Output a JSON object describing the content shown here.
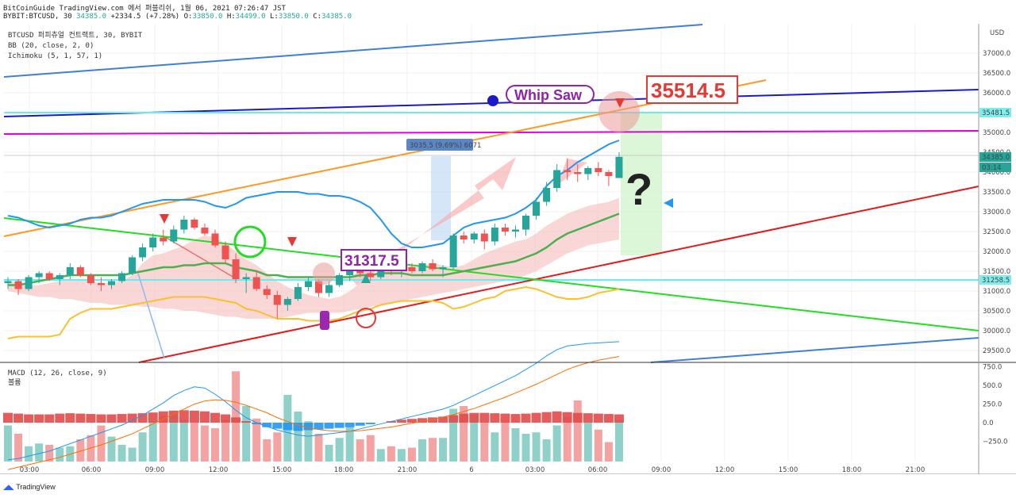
{
  "header": {
    "line1": "BitCoinGuide TradingView.com 에서 퍼블리쉬, 1월 06, 2021 07:26:47 JST",
    "symbol": "BYBIT:BTCUSD, 30",
    "change": "+2334.5 (+7.28%)",
    "open_label": "O:",
    "open": "33850.0",
    "high_label": "H:",
    "high": "34499.0",
    "low_label": "L:",
    "low": "33850.0",
    "close_label": "C:",
    "close": "34385.0"
  },
  "indicators": {
    "main": "BTCUSD 퍼피츄얼 컨트랙트, 30, BYBIT",
    "bb": "BB (20, close, 2, 0)",
    "ichimoku": "Ichimoku (5, 1, 57, 1)",
    "macd": "MACD (12, 26, close, 9)",
    "volume": "볼륨"
  },
  "currency": "USD",
  "footer": "TradingView",
  "colors": {
    "up": "#26a69a",
    "down": "#ef5350",
    "bb": "#2196f3",
    "kijun": "#4caf50",
    "spanb": "#fbc02d",
    "cloud": "#f4b6b6",
    "trend_blue": "#3f7fd8",
    "trend_navy": "#1a1ac8",
    "trend_orange": "#ff9822",
    "trend_red": "#e51b1b",
    "trend_green": "#22dd22",
    "h_cyan": "#66eeee",
    "h_magenta": "#dd00dd"
  },
  "chart_data": {
    "type": "candlestick",
    "y_range": [
      29250,
      37500
    ],
    "price_ticks": [
      29500,
      30000,
      30500,
      31000,
      31500,
      32000,
      32500,
      33000,
      33500,
      34000,
      34500,
      35000,
      35500,
      36000,
      36500,
      37000
    ],
    "price_tick_labels": [
      "29500.0",
      "30000.0",
      "30500.0",
      "31000.0",
      "31500.0",
      "32000.0",
      "32500.0",
      "33000.0",
      "33500.0",
      "34000.0",
      "34500.0",
      "35000.0",
      "35500.0",
      "36000.0",
      "36500.0",
      "37000.0"
    ],
    "time_labels": [
      "03:00",
      "06:00",
      "09:00",
      "12:00",
      "15:00",
      "18:00",
      "21:00",
      "6",
      "03:00",
      "06:00",
      "09:00",
      "12:00",
      "15:00",
      "18:00",
      "21:00"
    ],
    "macd_ticks": [
      750,
      500,
      250,
      0,
      -250
    ],
    "macd_tick_labels": [
      "750.0",
      "500.0",
      "250.0",
      "0.0",
      "−250.0"
    ],
    "candles": [
      [
        31200,
        31350,
        31050,
        31250
      ],
      [
        31250,
        31300,
        30900,
        31050
      ],
      [
        31050,
        31400,
        31000,
        31350
      ],
      [
        31350,
        31500,
        31200,
        31450
      ],
      [
        31450,
        31500,
        31250,
        31300
      ],
      [
        31300,
        31450,
        31150,
        31400
      ],
      [
        31400,
        31700,
        31300,
        31600
      ],
      [
        31600,
        31650,
        31350,
        31400
      ],
      [
        31400,
        31450,
        31150,
        31200
      ],
      [
        31200,
        31350,
        31000,
        31150
      ],
      [
        31150,
        31300,
        31050,
        31250
      ],
      [
        31250,
        31500,
        31200,
        31450
      ],
      [
        31450,
        31900,
        31400,
        31850
      ],
      [
        31850,
        32200,
        31750,
        32100
      ],
      [
        32100,
        32450,
        32000,
        32350
      ],
      [
        32350,
        32550,
        32150,
        32250
      ],
      [
        32250,
        32650,
        32200,
        32550
      ],
      [
        32550,
        32900,
        32450,
        32800
      ],
      [
        32800,
        32850,
        32550,
        32600
      ],
      [
        32600,
        32700,
        32400,
        32450
      ],
      [
        32450,
        32550,
        32100,
        32150
      ],
      [
        32150,
        32250,
        31700,
        31800
      ],
      [
        31800,
        31950,
        31200,
        31300
      ],
      [
        31300,
        31450,
        30950,
        31350
      ],
      [
        31350,
        31500,
        31000,
        31050
      ],
      [
        31050,
        31150,
        30800,
        30900
      ],
      [
        30900,
        31000,
        30300,
        30650
      ],
      [
        30650,
        30850,
        30500,
        30800
      ],
      [
        30800,
        31200,
        30750,
        31100
      ],
      [
        31100,
        31350,
        31000,
        31250
      ],
      [
        31250,
        31300,
        30850,
        30950
      ],
      [
        30950,
        31250,
        30850,
        31150
      ],
      [
        31150,
        31450,
        31100,
        31400
      ],
      [
        31400,
        31600,
        31250,
        31550
      ],
      [
        31550,
        31650,
        31350,
        31450
      ],
      [
        31450,
        31550,
        31250,
        31350
      ],
      [
        31350,
        31700,
        31300,
        31650
      ],
      [
        31650,
        31750,
        31400,
        31500
      ],
      [
        31500,
        31650,
        31350,
        31600
      ],
      [
        31600,
        31700,
        31450,
        31500
      ],
      [
        31500,
        31750,
        31450,
        31700
      ],
      [
        31700,
        31800,
        31500,
        31550
      ],
      [
        31550,
        31650,
        31350,
        31600
      ],
      [
        31600,
        32450,
        31550,
        32400
      ],
      [
        32400,
        32500,
        32200,
        32300
      ],
      [
        32300,
        32500,
        32200,
        32450
      ],
      [
        32450,
        32550,
        32050,
        32250
      ],
      [
        32250,
        32700,
        32150,
        32600
      ],
      [
        32600,
        32700,
        32400,
        32500
      ],
      [
        32500,
        32650,
        32350,
        32550
      ],
      [
        32550,
        32950,
        32400,
        32900
      ],
      [
        32900,
        33350,
        32800,
        33250
      ],
      [
        33250,
        33750,
        33150,
        33600
      ],
      [
        33600,
        34200,
        33500,
        34050
      ],
      [
        34050,
        34350,
        33800,
        34000
      ],
      [
        34000,
        34200,
        33750,
        33950
      ],
      [
        33950,
        34150,
        33800,
        34100
      ],
      [
        34100,
        34250,
        33900,
        34000
      ],
      [
        34000,
        34050,
        33650,
        33900
      ],
      [
        33850,
        34499,
        33850,
        34385
      ]
    ],
    "bb_upper": [
      32900,
      32850,
      32750,
      32650,
      32600,
      32650,
      32700,
      32800,
      32850,
      32850,
      32900,
      33000,
      33100,
      33200,
      33250,
      33300,
      33300,
      33300,
      33300,
      33250,
      33150,
      33100,
      33200,
      33350,
      33400,
      33450,
      33500,
      33500,
      33500,
      33450,
      33450,
      33400,
      33400,
      33350,
      33250,
      33100,
      32800,
      32450,
      32200,
      32100,
      32100,
      32150,
      32200,
      32400,
      32600,
      32700,
      32750,
      32800,
      32850,
      32950,
      33100,
      33300,
      33650,
      33900,
      34050,
      34250,
      34400,
      34550,
      34700,
      34800
    ],
    "kijun": [
      31150,
      31150,
      31200,
      31250,
      31300,
      31350,
      31400,
      31400,
      31400,
      31400,
      31400,
      31400,
      31450,
      31500,
      31550,
      31600,
      31600,
      31650,
      31650,
      31700,
      31700,
      31700,
      31600,
      31550,
      31500,
      31400,
      31400,
      31350,
      31350,
      31350,
      31350,
      31350,
      31350,
      31350,
      31400,
      31400,
      31450,
      31450,
      31450,
      31400,
      31400,
      31400,
      31400,
      31450,
      31500,
      31550,
      31600,
      31650,
      31700,
      31750,
      31850,
      31950,
      32100,
      32300,
      32450,
      32550,
      32650,
      32750,
      32850,
      32950
    ],
    "span_b": [
      29800,
      29850,
      29850,
      29850,
      29850,
      29900,
      30300,
      30450,
      30550,
      30550,
      30550,
      30600,
      30650,
      30700,
      30750,
      30800,
      30850,
      30850,
      30850,
      30850,
      30800,
      30750,
      30700,
      30550,
      30500,
      30400,
      30300,
      30300,
      30300,
      30250,
      30250,
      30250,
      30300,
      30400,
      30500,
      30550,
      30650,
      30700,
      30750,
      30750,
      30750,
      30750,
      30700,
      30550,
      30600,
      30700,
      30800,
      30850,
      31000,
      31050,
      31100,
      31050,
      30950,
      30850,
      30800,
      30800,
      30850,
      30950,
      31000,
      31050
    ],
    "cloud_top": [
      31250,
      31200,
      31150,
      31150,
      31200,
      31250,
      31300,
      31300,
      31250,
      31200,
      31200,
      31250,
      31400,
      31700,
      31900,
      31950,
      32050,
      32150,
      32300,
      32400,
      32350,
      32200,
      32000,
      31800,
      31650,
      31450,
      31250,
      31100,
      31000,
      30900,
      30850,
      30800,
      30850,
      31000,
      31200,
      31400,
      31500,
      31600,
      31600,
      31650,
      31650,
      31700,
      31650,
      31600,
      31650,
      31800,
      31950,
      32050,
      32150,
      32250,
      32300,
      32450,
      32650,
      32800,
      32950,
      33050,
      33150,
      33200,
      33250,
      33350
    ],
    "cloud_bottom": [
      31000,
      30950,
      30900,
      30850,
      30850,
      30800,
      30800,
      30750,
      30700,
      30700,
      30650,
      30650,
      30650,
      30600,
      30600,
      30550,
      30550,
      30500,
      30500,
      30450,
      30400,
      30350,
      30350,
      30300,
      30300,
      30300,
      30300,
      30350,
      30400,
      30450,
      30450,
      30450,
      30450,
      30500,
      30550,
      30600,
      30650,
      30700,
      30750,
      30800,
      30850,
      30900,
      30950,
      31000,
      31050,
      31100,
      31150,
      31200,
      31250,
      31300,
      31400,
      31500,
      31650,
      31800,
      31950,
      32050,
      32150,
      32200,
      32250,
      32300
    ],
    "macd_hist": [
      130,
      120,
      110,
      110,
      110,
      120,
      125,
      120,
      115,
      110,
      110,
      115,
      120,
      125,
      135,
      150,
      160,
      165,
      160,
      150,
      130,
      110,
      70,
      20,
      -20,
      -60,
      -80,
      -100,
      -110,
      -100,
      -90,
      -80,
      -70,
      -60,
      -40,
      -20,
      0,
      20,
      40,
      50,
      60,
      70,
      80,
      100,
      120,
      130,
      130,
      125,
      120,
      115,
      120,
      130,
      140,
      150,
      140,
      130,
      125,
      120,
      115,
      110
    ],
    "macd_line": [
      -300,
      -290,
      -270,
      -250,
      -230,
      -200,
      -170,
      -140,
      -110,
      -80,
      -50,
      -20,
      20,
      60,
      110,
      160,
      220,
      260,
      290,
      280,
      230,
      170,
      100,
      40,
      0,
      -30,
      -60,
      -80,
      -100,
      -110,
      -100,
      -90,
      -80,
      -70,
      -50,
      -30,
      -10,
      10,
      30,
      50,
      70,
      90,
      110,
      140,
      180,
      220,
      260,
      300,
      340,
      380,
      430,
      480,
      540,
      590,
      620,
      630,
      640,
      645,
      650,
      655
    ],
    "signal_line": [
      -380,
      -360,
      -340,
      -320,
      -300,
      -280,
      -255,
      -230,
      -205,
      -180,
      -150,
      -120,
      -90,
      -50,
      -10,
      30,
      70,
      110,
      150,
      175,
      185,
      180,
      165,
      140,
      110,
      80,
      40,
      10,
      -20,
      -40,
      -55,
      -65,
      -70,
      -70,
      -65,
      -55,
      -45,
      -35,
      -20,
      -5,
      10,
      25,
      45,
      65,
      90,
      115,
      145,
      175,
      205,
      240,
      275,
      310,
      350,
      390,
      430,
      460,
      485,
      505,
      520,
      535
    ],
    "volume": [
      260,
      200,
      110,
      130,
      120,
      100,
      110,
      160,
      190,
      260,
      180,
      120,
      100,
      210,
      290,
      330,
      350,
      300,
      280,
      260,
      240,
      300,
      650,
      400,
      310,
      160,
      210,
      480,
      360,
      290,
      200,
      120,
      170,
      250,
      160,
      190,
      90,
      110,
      90,
      100,
      160,
      170,
      170,
      380,
      400,
      340,
      280,
      210,
      290,
      240,
      200,
      210,
      160,
      260,
      320,
      440,
      280,
      230,
      140,
      300
    ],
    "right_labels": [
      "35481.5",
      "34385.0",
      "03:14",
      "31258.5"
    ],
    "annotations": [
      "Whip Saw",
      "35514.5",
      "31317.5",
      "3035.5 (9.69%) 6071",
      "?"
    ]
  }
}
